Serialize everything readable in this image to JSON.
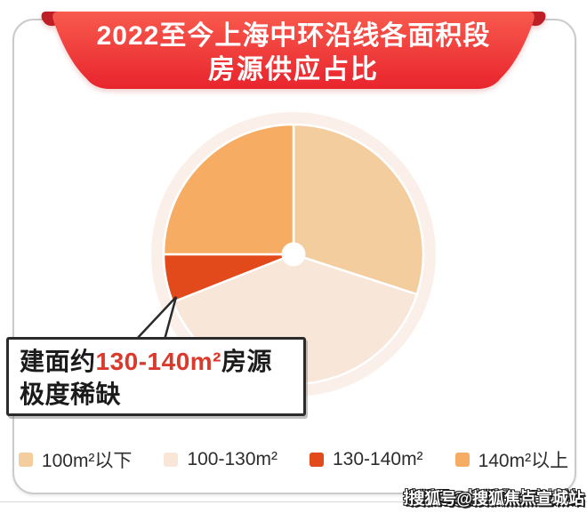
{
  "header": {
    "title_line1": "2022至今上海中环沿线各面积段",
    "title_line2": "房源供应占比"
  },
  "chart_data": {
    "type": "pie",
    "title": "2022至今上海中环沿线各面积段房源供应占比",
    "donut_hole": true,
    "start_angle_deg": 0,
    "direction": "clockwise",
    "legend_position": "bottom",
    "halo_color": "#faf0e9",
    "segments": [
      {
        "label": "100m²以下",
        "value_pct": 30,
        "color": "#f3cd9e"
      },
      {
        "label": "100-130m²",
        "value_pct": 39,
        "color": "#f8e6d9"
      },
      {
        "label": "130-140m²",
        "value_pct": 6,
        "color": "#e2491b"
      },
      {
        "label": "140m²以上",
        "value_pct": 25,
        "color": "#f7ac63"
      }
    ],
    "annotation": "建面约130-140m²房源极度稀缺"
  },
  "callout": {
    "prefix": "建面约",
    "highlight": "130-140m²",
    "suffix": "房源",
    "line2": "极度稀缺",
    "highlight_color": "#d93a2c"
  },
  "watermark": {
    "text": "搜狐号@搜狐焦点宣城站"
  },
  "colors": {
    "banner_red_top": "#f85a4d",
    "banner_red_bottom": "#e8242d",
    "banner_fold": "#be1f27",
    "callout_border": "#2b2b2b",
    "card_border": "#cbcbcb"
  }
}
